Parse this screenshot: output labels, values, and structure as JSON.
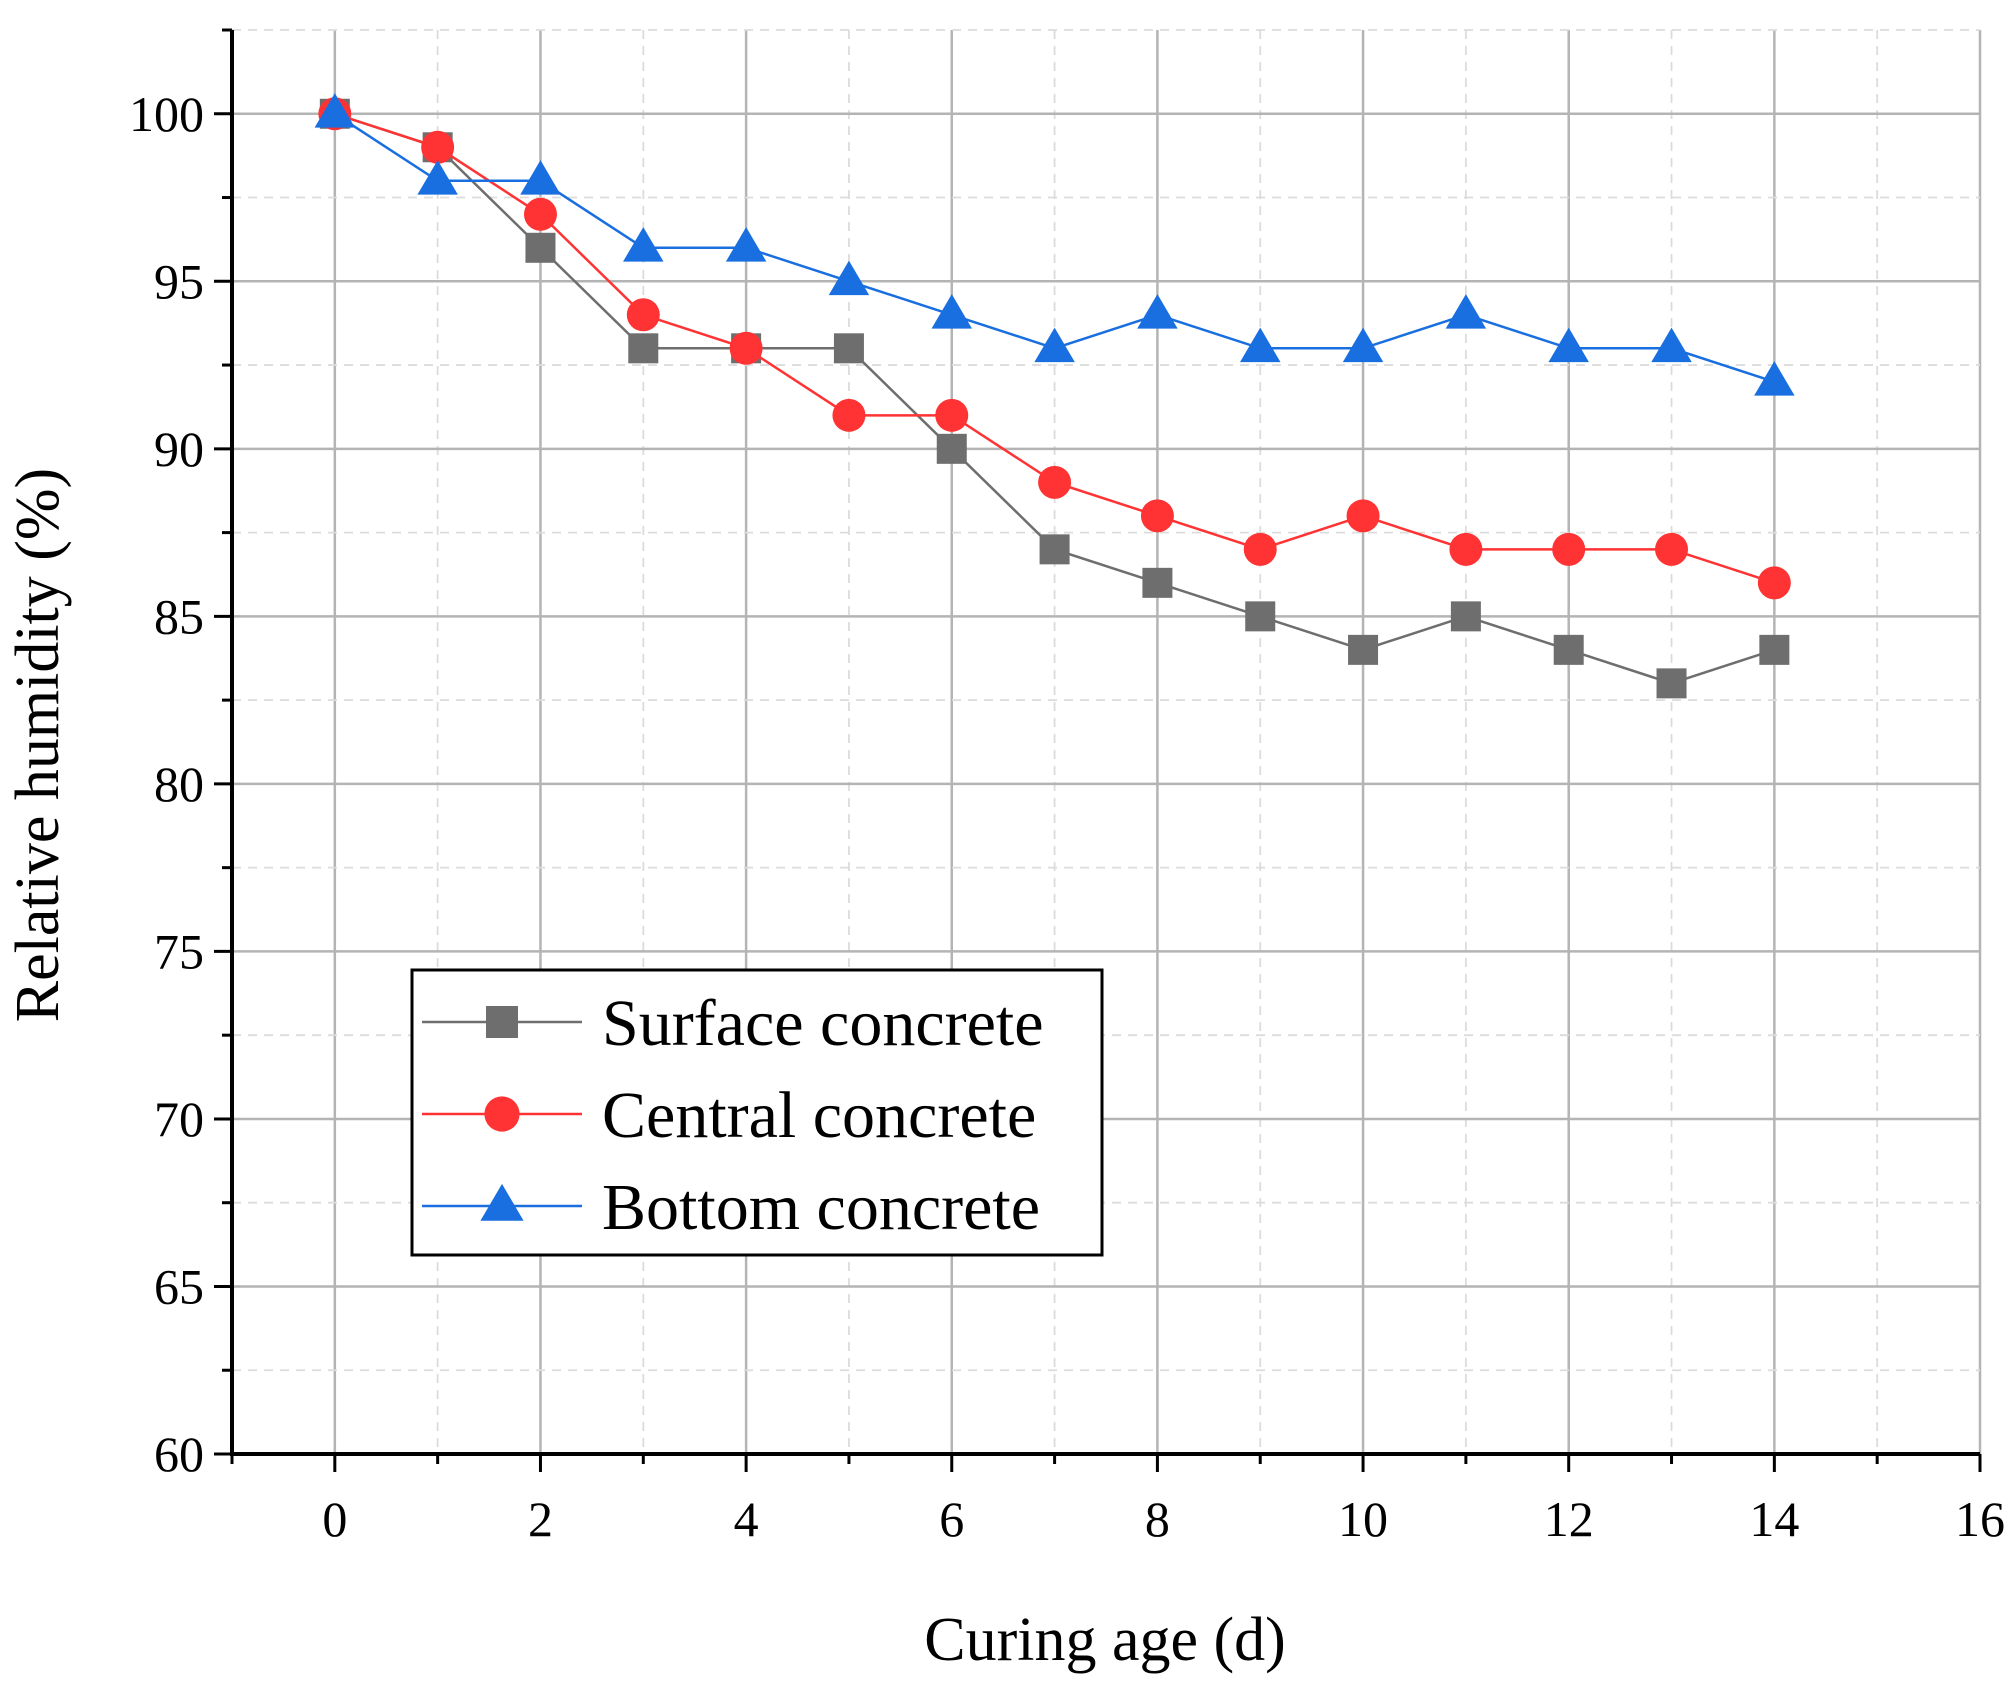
{
  "chart_data": {
    "type": "line",
    "xlabel": "Curing age (d)",
    "ylabel": "Relative humidity (%)",
    "xlim": [
      -1,
      16
    ],
    "ylim": [
      60,
      102.5
    ],
    "x_ticks": [
      0,
      2,
      4,
      6,
      8,
      10,
      12,
      14,
      16
    ],
    "y_ticks": [
      60,
      65,
      70,
      75,
      80,
      85,
      90,
      95,
      100
    ],
    "grid": true,
    "legend_position": "bottom-left",
    "x": [
      0,
      1,
      2,
      3,
      4,
      5,
      6,
      7,
      8,
      9,
      10,
      11,
      12,
      13,
      14
    ],
    "series": [
      {
        "name": "Surface concrete",
        "marker": "square",
        "color": "#6e6e6e",
        "values": [
          100,
          99,
          96,
          93,
          93,
          93,
          90,
          87,
          86,
          85,
          84,
          85,
          84,
          83,
          84
        ]
      },
      {
        "name": "Central concrete",
        "marker": "circle",
        "color": "#ff3333",
        "values": [
          100,
          99,
          97,
          94,
          93,
          91,
          91,
          89,
          88,
          87,
          88,
          87,
          87,
          87,
          86
        ]
      },
      {
        "name": "Bottom concrete",
        "marker": "triangle",
        "color": "#1a6fe0",
        "values": [
          100,
          98,
          98,
          96,
          96,
          95,
          94,
          93,
          94,
          93,
          93,
          94,
          93,
          93,
          92
        ]
      }
    ]
  }
}
